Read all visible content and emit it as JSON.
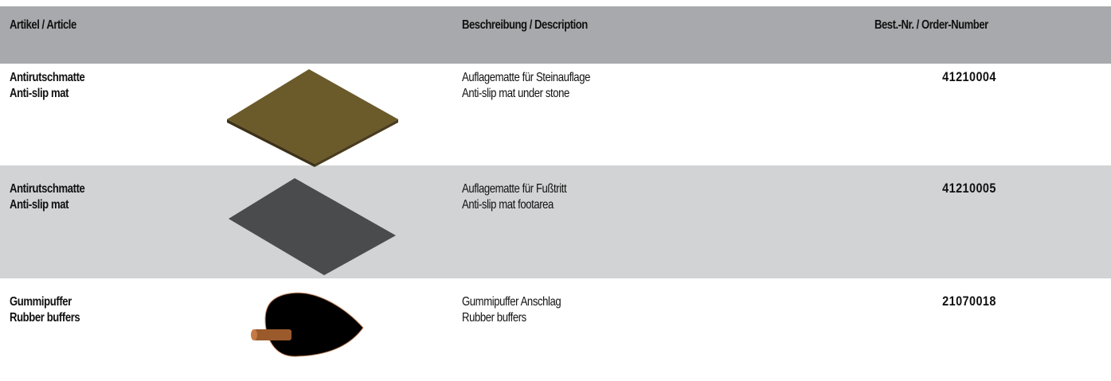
{
  "header": {
    "columns": [
      "Artikel / Article",
      "Beschreibung / Description",
      "Best.-Nr. / Order-Number"
    ]
  },
  "table": {
    "rows": [
      {
        "article": [
          "Antirutschmatte",
          "Anti-slip mat"
        ],
        "description": [
          "Auflagematte für Steinauflage",
          "Anti-slip mat under stone"
        ],
        "order_number": "41210004"
      },
      {
        "article": [
          "Antirutschmatte",
          "Anti-slip mat"
        ],
        "description": [
          "Auflagematte für Fußtritt",
          "Anti-slip mat footarea"
        ],
        "order_number": "41210005"
      },
      {
        "article": [
          "Gummipuffer",
          "Rubber buffers"
        ],
        "description": [
          "Gummipuffer Anschlag",
          "Rubber buffers"
        ],
        "order_number": "21070018"
      }
    ]
  }
}
